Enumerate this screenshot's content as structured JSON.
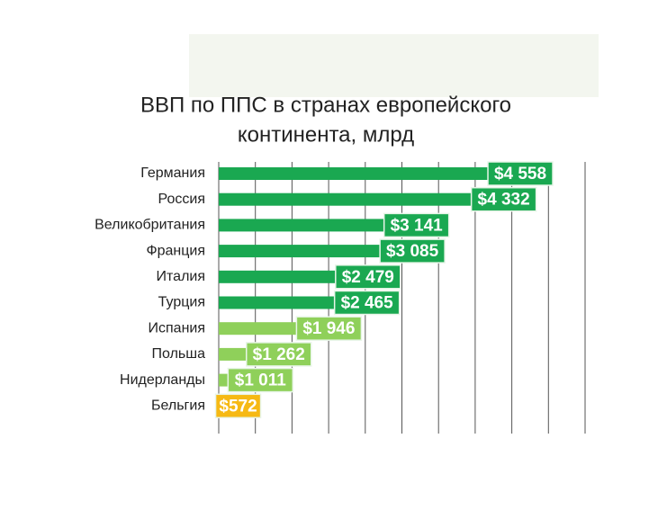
{
  "chart_data": {
    "type": "hbar",
    "title": [
      "ВВП по ППС в странах европейского",
      "континента, млрд"
    ],
    "categories": [
      "Германия",
      "Россия",
      "Великобритания",
      "Франция",
      "Италия",
      "Турция",
      "Испания",
      "Польша",
      "Нидерланды",
      "Бельгия"
    ],
    "values": [
      4558,
      4332,
      3141,
      3085,
      2479,
      2465,
      1946,
      1262,
      1011,
      572
    ],
    "value_labels": [
      "$4 558",
      "$4 332",
      "$3 141",
      "$3 085",
      "$2 479",
      "$2 465",
      "$1 946",
      "$1 262",
      "$1 011",
      "$572"
    ],
    "colors": [
      "#1aa851",
      "#1aa851",
      "#1aa851",
      "#1aa851",
      "#1aa851",
      "#1aa851",
      "#8fd05a",
      "#8fd05a",
      "#8fd05a",
      "#f6b914"
    ],
    "xlim": [
      0,
      5000
    ],
    "xticks": [
      0,
      500,
      1000,
      1500,
      2000,
      2500,
      3000,
      3500,
      4000,
      4500,
      5000
    ],
    "grid": true
  }
}
